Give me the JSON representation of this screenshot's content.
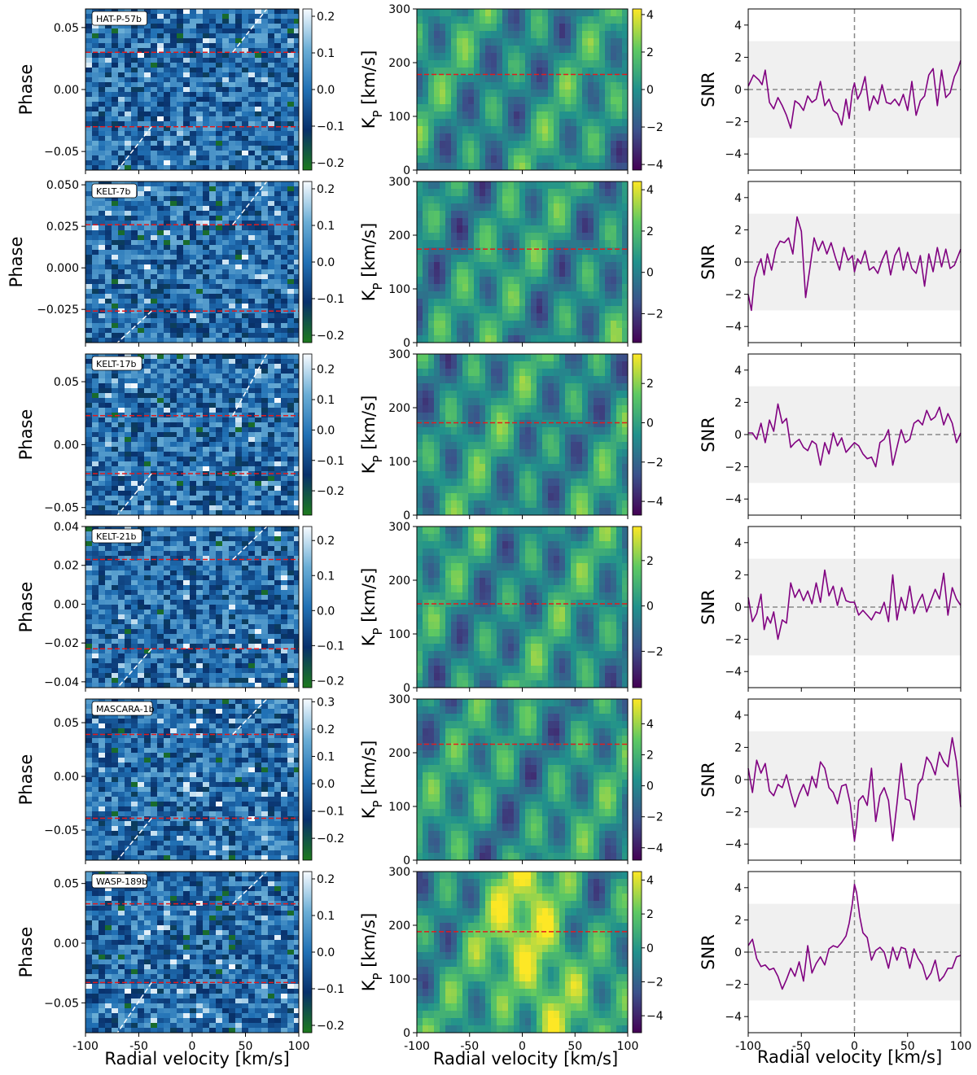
{
  "chart_data": {
    "type": "heatmap",
    "x_range": [
      -100,
      100
    ],
    "x_ticks": [
      "-100",
      "-50",
      "0",
      "50",
      "100"
    ],
    "x_tick_values": [
      -100,
      -50,
      0,
      50,
      100
    ],
    "xlabel": "Radial velocity [km/s]",
    "phase_ylabel": "Phase",
    "kp_ylabel": "K",
    "kp_ylabel_sub": "P",
    "kp_ylabel_unit": " [km/s]",
    "snr_ylabel": "SNR",
    "kp_range": [
      0,
      300
    ],
    "kp_ticks": [
      "0",
      "100",
      "200",
      "300"
    ],
    "kp_tick_values": [
      0,
      100,
      200,
      300
    ],
    "snr_range": [
      -5,
      5
    ],
    "snr_ticks": [
      "−4",
      "−2",
      "0",
      "2",
      "4"
    ],
    "snr_tick_values": [
      -4,
      -2,
      0,
      2,
      4
    ],
    "snr_band": [
      -3,
      3
    ],
    "colors": {
      "phase_cmap": [
        "#1d7a1d",
        "#08306b",
        "#2171b5",
        "#6baed6",
        "#f7fbff"
      ],
      "kp_cmap": [
        "#440154",
        "#3b528b",
        "#21918c",
        "#5ec962",
        "#fde725"
      ],
      "red_line": "#e31a1c",
      "trail_line": "#ffffff",
      "snr_line": "#800080",
      "band": "#f0f0f0",
      "zero_line": "#888888"
    },
    "rows": [
      {
        "planet": "HAT-P-57b",
        "phase_range": [
          -0.065,
          0.065
        ],
        "phase_ticks": [
          "−0.05",
          "0.00",
          "0.05"
        ],
        "phase_tick_values": [
          -0.05,
          0.0,
          0.05
        ],
        "transit_phases": [
          0.03,
          -0.03
        ],
        "phase_cbar_range": [
          -0.22,
          0.22
        ],
        "phase_cbar_ticks": [
          "−0.2",
          "−0.1",
          "0.0",
          "0.1",
          "0.2"
        ],
        "phase_cbar_tick_values": [
          -0.2,
          -0.1,
          0.0,
          0.1,
          0.2
        ],
        "kp_planet": 178,
        "kp_cbar_range": [
          -4.3,
          4.3
        ],
        "kp_cbar_ticks": [
          "−4",
          "−2",
          "0",
          "2",
          "4"
        ],
        "kp_cbar_tick_values": [
          -4,
          -2,
          0,
          2,
          4
        ],
        "snr_x": [
          -100,
          -95,
          -90,
          -87,
          -84,
          -80,
          -76,
          -72,
          -68,
          -64,
          -60,
          -56,
          -52,
          -48,
          -44,
          -40,
          -36,
          -32,
          -28,
          -24,
          -20,
          -16,
          -12,
          -8,
          -5,
          -2,
          0,
          3,
          6,
          10,
          14,
          18,
          22,
          26,
          30,
          34,
          38,
          42,
          46,
          50,
          54,
          58,
          62,
          66,
          70,
          74,
          78,
          82,
          86,
          90,
          94,
          97,
          100
        ],
        "snr_y": [
          0.2,
          0.9,
          0.6,
          0.3,
          1.2,
          -0.8,
          -1.2,
          -0.5,
          -1.0,
          -1.6,
          -2.4,
          -0.7,
          -0.9,
          -1.3,
          -0.4,
          -0.8,
          -0.6,
          0.5,
          -1.0,
          -0.6,
          -1.3,
          -1.5,
          -2.2,
          -0.6,
          -1.8,
          -0.1,
          0.4,
          -0.6,
          -0.2,
          0.8,
          -1.3,
          -0.4,
          -0.9,
          0.3,
          -0.8,
          -0.9,
          -0.6,
          -1.0,
          -0.3,
          -1.3,
          0.5,
          -1.6,
          -0.7,
          -0.4,
          0.9,
          1.3,
          -1.0,
          1.2,
          -0.5,
          -0.2,
          0.8,
          1.2,
          1.8
        ]
      },
      {
        "planet": "KELT-7b",
        "phase_range": [
          -0.045,
          0.052
        ],
        "phase_ticks": [
          "−0.025",
          "0.000",
          "0.025",
          "0.050"
        ],
        "phase_tick_values": [
          -0.025,
          0.0,
          0.025,
          0.05
        ],
        "transit_phases": [
          0.026,
          -0.026
        ],
        "phase_cbar_range": [
          -0.22,
          0.22
        ],
        "phase_cbar_ticks": [
          "−0.2",
          "−0.1",
          "0.0",
          "0.1",
          "0.2"
        ],
        "phase_cbar_tick_values": [
          -0.2,
          -0.1,
          0.0,
          0.1,
          0.2
        ],
        "kp_planet": 174,
        "kp_cbar_range": [
          -3.4,
          4.4
        ],
        "kp_cbar_ticks": [
          "−2",
          "0",
          "2",
          "4"
        ],
        "kp_cbar_tick_values": [
          -2,
          0,
          2,
          4
        ],
        "snr_x": [
          -100,
          -97,
          -94,
          -91,
          -88,
          -85,
          -82,
          -78,
          -74,
          -70,
          -66,
          -62,
          -58,
          -54,
          -50,
          -46,
          -42,
          -38,
          -34,
          -30,
          -26,
          -22,
          -18,
          -14,
          -10,
          -6,
          -2,
          0,
          3,
          6,
          10,
          14,
          18,
          22,
          26,
          30,
          34,
          38,
          42,
          46,
          50,
          54,
          58,
          62,
          66,
          70,
          74,
          78,
          82,
          86,
          90,
          94,
          97,
          100
        ],
        "snr_y": [
          -2.0,
          -3.0,
          -1.0,
          -0.3,
          0.2,
          -0.8,
          0.5,
          -0.5,
          0.8,
          1.3,
          1.2,
          1.5,
          0.5,
          2.8,
          1.9,
          -2.2,
          -0.4,
          1.5,
          0.7,
          1.3,
          0.5,
          1.2,
          0.3,
          -0.5,
          0.9,
          0.1,
          0.4,
          -0.6,
          0.2,
          -0.1,
          0.7,
          -0.5,
          -0.3,
          -0.7,
          0.1,
          0.7,
          -0.8,
          0.4,
          0.9,
          -0.5,
          0.6,
          -0.4,
          -0.7,
          0.4,
          -1.5,
          0.5,
          -0.6,
          0.9,
          -0.3,
          0.8,
          -0.4,
          -0.2,
          0.3,
          0.8
        ]
      },
      {
        "planet": "KELT-17b",
        "phase_range": [
          -0.056,
          0.072
        ],
        "phase_ticks": [
          "−0.05",
          "0.00",
          "0.05"
        ],
        "phase_tick_values": [
          -0.05,
          0.0,
          0.05
        ],
        "transit_phases": [
          0.023,
          -0.023
        ],
        "phase_cbar_range": [
          -0.28,
          0.25
        ],
        "phase_cbar_ticks": [
          "−0.2",
          "−0.1",
          "0.0",
          "0.1",
          "0.2"
        ],
        "phase_cbar_tick_values": [
          -0.2,
          -0.1,
          0.0,
          0.1,
          0.2
        ],
        "kp_planet": 172,
        "kp_cbar_range": [
          -4.7,
          3.5
        ],
        "kp_cbar_ticks": [
          "−4",
          "−2",
          "0",
          "2"
        ],
        "kp_cbar_tick_values": [
          -4,
          -2,
          0,
          2
        ],
        "snr_x": [
          -100,
          -96,
          -92,
          -88,
          -84,
          -80,
          -76,
          -72,
          -68,
          -64,
          -60,
          -56,
          -52,
          -48,
          -44,
          -40,
          -36,
          -32,
          -28,
          -24,
          -20,
          -16,
          -12,
          -8,
          -4,
          0,
          4,
          8,
          12,
          16,
          20,
          24,
          28,
          32,
          36,
          40,
          44,
          48,
          52,
          56,
          60,
          64,
          68,
          72,
          76,
          80,
          84,
          88,
          92,
          96,
          100
        ],
        "snr_y": [
          0.1,
          0.1,
          -0.3,
          0.7,
          -0.5,
          0.9,
          0.2,
          1.9,
          0.7,
          1.0,
          -0.8,
          -0.5,
          -0.3,
          -0.8,
          -1.0,
          -0.4,
          -0.6,
          -1.9,
          -0.5,
          -1.2,
          0.1,
          -0.7,
          -0.2,
          -1.1,
          -0.8,
          -0.5,
          -0.7,
          -1.2,
          -1.5,
          -1.4,
          -2.0,
          -0.5,
          -0.3,
          0.3,
          -1.9,
          -0.8,
          0.3,
          -0.5,
          -0.3,
          0.7,
          0.9,
          0.6,
          1.5,
          0.9,
          1.1,
          1.7,
          0.6,
          1.3,
          0.7,
          -0.5,
          0.1
        ]
      },
      {
        "planet": "KELT-21b",
        "phase_range": [
          -0.043,
          0.04
        ],
        "phase_ticks": [
          "−0.04",
          "−0.02",
          "0.00",
          "0.02",
          "0.04"
        ],
        "phase_tick_values": [
          -0.04,
          -0.02,
          0.0,
          0.02,
          0.04
        ],
        "transit_phases": [
          0.023,
          -0.023
        ],
        "phase_cbar_range": [
          -0.22,
          0.24
        ],
        "phase_cbar_ticks": [
          "−0.2",
          "−0.1",
          "0.0",
          "0.1",
          "0.2"
        ],
        "phase_cbar_tick_values": [
          -0.2,
          -0.1,
          0.0,
          0.1,
          0.2
        ],
        "kp_planet": 156,
        "kp_cbar_range": [
          -3.6,
          3.5
        ],
        "kp_cbar_ticks": [
          "−2",
          "0",
          "2"
        ],
        "kp_cbar_tick_values": [
          -2,
          0,
          2
        ],
        "snr_x": [
          -100,
          -96,
          -92,
          -88,
          -85,
          -82,
          -79,
          -76,
          -72,
          -68,
          -64,
          -60,
          -56,
          -52,
          -48,
          -44,
          -40,
          -36,
          -32,
          -28,
          -24,
          -20,
          -16,
          -12,
          -8,
          -4,
          0,
          4,
          8,
          12,
          16,
          20,
          24,
          28,
          32,
          36,
          40,
          44,
          48,
          52,
          56,
          60,
          64,
          68,
          72,
          76,
          80,
          84,
          88,
          92,
          96,
          100
        ],
        "snr_y": [
          0.6,
          -0.9,
          -0.4,
          0.8,
          -1.4,
          -0.6,
          -1.0,
          -0.3,
          -2.0,
          -0.8,
          -1.0,
          1.5,
          0.6,
          1.1,
          0.4,
          1.0,
          0.2,
          1.5,
          0.3,
          2.3,
          0.7,
          1.3,
          0.1,
          1.2,
          0.4,
          0.3,
          0.3,
          -0.5,
          -0.2,
          -0.5,
          -0.8,
          -0.3,
          -0.4,
          0.3,
          -0.9,
          2.0,
          -0.8,
          0.6,
          -0.2,
          1.3,
          -0.4,
          0.3,
          0.8,
          -0.3,
          0.4,
          1.1,
          0.5,
          2.1,
          -0.5,
          1.2,
          0.5,
          0.1
        ]
      },
      {
        "planet": "MASCARA-1b",
        "phase_range": [
          -0.078,
          0.072
        ],
        "phase_ticks": [
          "−0.05",
          "0.00",
          "0.05"
        ],
        "phase_tick_values": [
          -0.05,
          0.0,
          0.05
        ],
        "transit_phases": [
          0.039,
          -0.039
        ],
        "phase_cbar_range": [
          -0.28,
          0.31
        ],
        "phase_cbar_ticks": [
          "−0.2",
          "−0.1",
          "0.0",
          "0.1",
          "0.2",
          "0.3"
        ],
        "phase_cbar_tick_values": [
          -0.2,
          -0.1,
          0.0,
          0.1,
          0.2,
          0.3
        ],
        "kp_planet": 216,
        "kp_cbar_range": [
          -4.8,
          5.6
        ],
        "kp_cbar_ticks": [
          "−4",
          "−2",
          "0",
          "2",
          "4"
        ],
        "kp_cbar_tick_values": [
          -4,
          -2,
          0,
          2,
          4
        ],
        "snr_x": [
          -100,
          -96,
          -92,
          -88,
          -84,
          -80,
          -76,
          -72,
          -68,
          -64,
          -60,
          -56,
          -52,
          -48,
          -44,
          -40,
          -36,
          -32,
          -28,
          -24,
          -20,
          -16,
          -12,
          -8,
          -4,
          0,
          2,
          4,
          8,
          12,
          16,
          20,
          24,
          28,
          32,
          36,
          40,
          44,
          48,
          52,
          56,
          60,
          64,
          68,
          72,
          76,
          80,
          84,
          88,
          92,
          96,
          100
        ],
        "snr_y": [
          0.7,
          -0.8,
          1.2,
          0.4,
          1.0,
          -0.7,
          -1.0,
          -0.3,
          -0.5,
          0.3,
          -0.8,
          -1.7,
          -0.9,
          -0.3,
          -1.0,
          0.2,
          -0.5,
          1.1,
          0.7,
          -0.5,
          -0.8,
          -1.5,
          -0.4,
          -0.3,
          -1.5,
          -3.8,
          -2.8,
          -1.3,
          -1.0,
          -1.6,
          0.7,
          -2.6,
          -1.0,
          -0.5,
          -1.3,
          -3.8,
          -1.5,
          1.0,
          -1.2,
          -1.3,
          -2.5,
          -0.3,
          0.1,
          1.4,
          1.0,
          0.3,
          1.7,
          1.1,
          0.8,
          2.6,
          1.1,
          -1.7
        ]
      },
      {
        "planet": "WASP-189b",
        "phase_range": [
          -0.075,
          0.06
        ],
        "phase_ticks": [
          "−0.05",
          "0.00",
          "0.05"
        ],
        "phase_tick_values": [
          -0.05,
          0.0,
          0.05
        ],
        "transit_phases": [
          0.033,
          -0.033
        ],
        "phase_cbar_range": [
          -0.22,
          0.22
        ],
        "phase_cbar_ticks": [
          "−0.2",
          "−0.1",
          "0.0",
          "0.1",
          "0.2"
        ],
        "phase_cbar_tick_values": [
          -0.2,
          -0.1,
          0.0,
          0.1,
          0.2
        ],
        "kp_planet": 188,
        "kp_cbar_range": [
          -5.0,
          4.5
        ],
        "kp_cbar_ticks": [
          "−4",
          "−2",
          "0",
          "2",
          "4"
        ],
        "kp_cbar_tick_values": [
          -4,
          -2,
          0,
          2,
          4
        ],
        "snr_x": [
          -100,
          -96,
          -92,
          -88,
          -84,
          -80,
          -76,
          -72,
          -68,
          -64,
          -60,
          -56,
          -52,
          -48,
          -44,
          -40,
          -36,
          -32,
          -28,
          -24,
          -20,
          -16,
          -12,
          -8,
          -5,
          -2,
          0,
          2,
          5,
          8,
          12,
          16,
          20,
          24,
          28,
          32,
          36,
          40,
          44,
          48,
          52,
          56,
          60,
          64,
          68,
          72,
          76,
          80,
          84,
          88,
          92,
          96,
          100
        ],
        "snr_y": [
          0.4,
          0.8,
          -0.4,
          -0.9,
          -0.8,
          -1.1,
          -1.0,
          -1.5,
          -2.3,
          -1.7,
          -1.0,
          -1.5,
          -0.6,
          -1.8,
          0.4,
          -1.3,
          -0.7,
          -0.3,
          -0.8,
          0.2,
          0.4,
          0.3,
          0.6,
          1.0,
          1.8,
          3.0,
          4.2,
          3.7,
          2.2,
          1.2,
          0.9,
          -0.5,
          0.1,
          0.3,
          0.0,
          -1.0,
          0.3,
          -0.5,
          0.3,
          0.2,
          -1.0,
          0.2,
          -0.4,
          -0.8,
          -1.7,
          -1.3,
          -0.5,
          -1.8,
          -1.5,
          -1.0,
          -1.0,
          -0.3,
          -0.2
        ]
      }
    ]
  }
}
